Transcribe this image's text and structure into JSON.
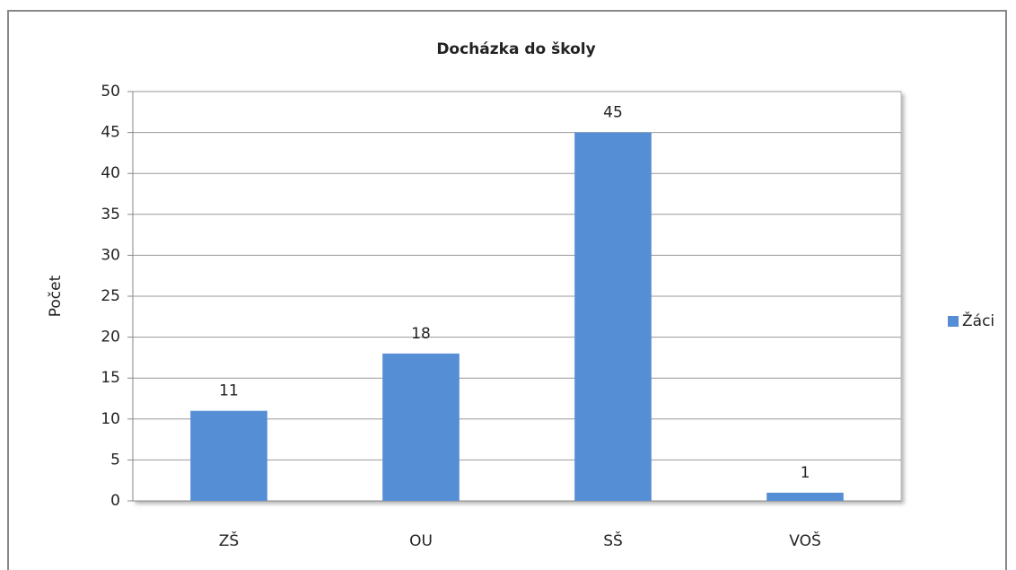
{
  "chart_data": {
    "type": "bar",
    "title": "Docházka do školy",
    "y_label": "Počet",
    "categories": [
      "ZŠ",
      "OU",
      "SŠ",
      "VOŠ"
    ],
    "series": [
      {
        "name": "Žáci",
        "color": "#558ed5",
        "values": [
          11,
          18,
          45,
          1
        ]
      }
    ],
    "ylim": [
      0,
      50
    ],
    "yticks": [
      0,
      5,
      10,
      15,
      20,
      25,
      30,
      35,
      40,
      45,
      50
    ],
    "grid": true,
    "legend": "right"
  }
}
